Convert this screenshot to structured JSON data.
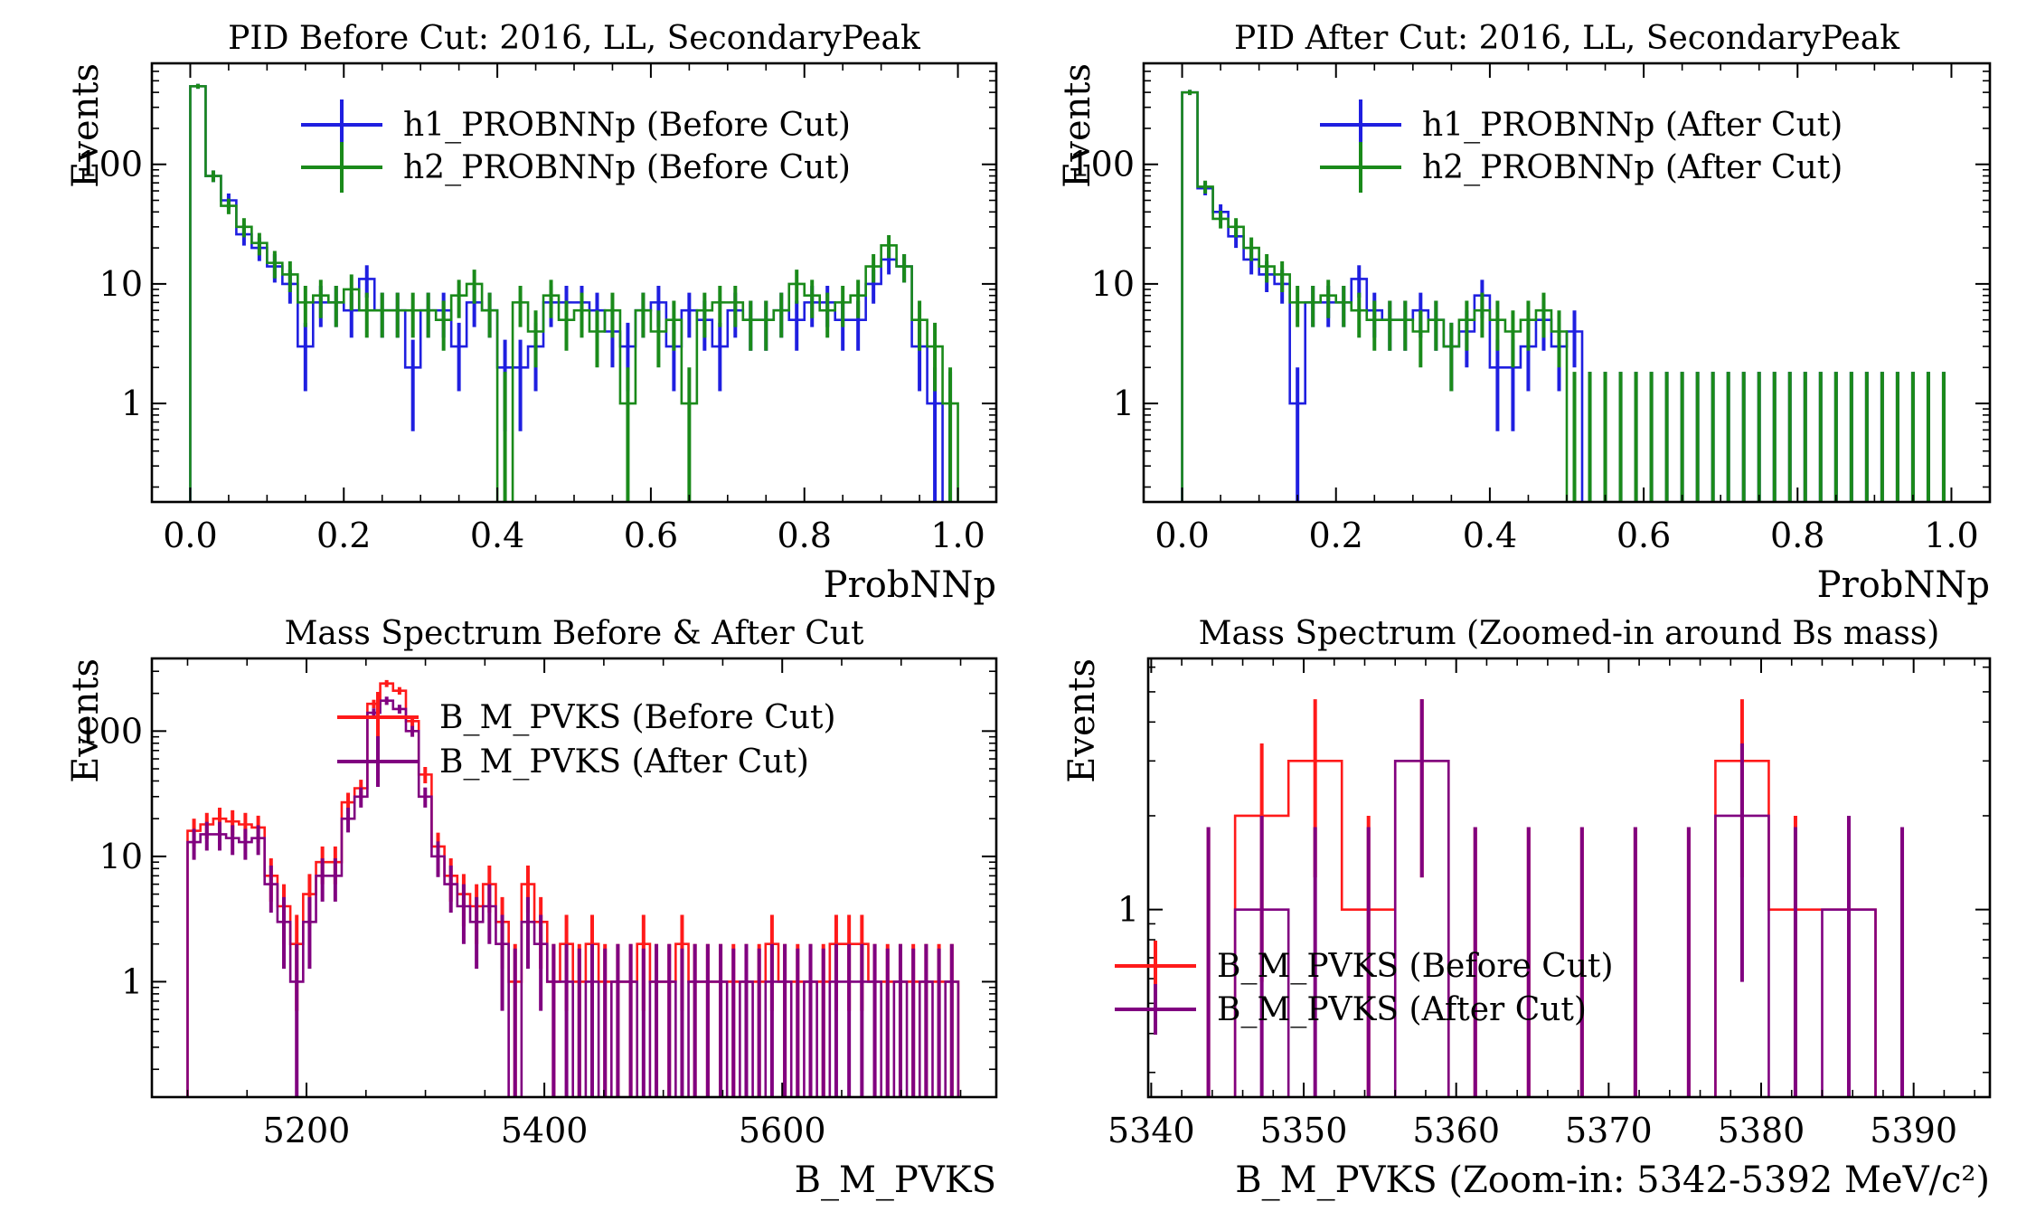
{
  "chart_data": [
    {
      "type": "histogram",
      "title": "PID Before Cut: 2016, LL, SecondaryPeak",
      "xlabel": "ProbNNp",
      "ylabel": "Events",
      "yscale": "log",
      "xlim": [
        -0.05,
        1.05
      ],
      "ylim": [
        0.15,
        700
      ],
      "xticks": [
        0.0,
        0.2,
        0.4,
        0.6,
        0.8,
        1.0
      ],
      "xtick_labels": [
        "0.0",
        "0.2",
        "0.4",
        "0.6",
        "0.8",
        "1.0"
      ],
      "yticks": [
        1,
        10,
        100
      ],
      "ytick_labels": [
        "1",
        "10",
        "100"
      ],
      "bin_edges": {
        "start": 0.0,
        "width": 0.02,
        "count": 50
      },
      "legend_position": "top-right",
      "series": [
        {
          "name": "h1_PROBNNp (Before Cut)",
          "color": "#1f1fe0",
          "values": [
            450,
            80,
            50,
            26,
            20,
            14,
            10,
            3,
            7,
            7,
            6,
            11,
            6,
            6,
            2,
            6,
            6,
            3,
            7,
            6,
            2,
            2,
            3,
            7,
            7,
            7,
            6,
            4,
            3,
            6,
            7,
            3,
            6,
            5,
            3,
            6,
            5,
            5,
            6,
            5,
            7,
            7,
            5,
            5,
            10,
            16,
            14,
            3,
            1,
            0
          ]
        },
        {
          "name": "h2_PROBNNp (Before Cut)",
          "color": "#1a8a1a",
          "values": [
            450,
            80,
            45,
            30,
            22,
            15,
            12,
            7,
            8,
            7,
            9,
            6,
            6,
            6,
            6,
            6,
            5,
            8,
            10,
            6,
            0,
            7,
            4,
            8,
            5,
            6,
            4,
            6,
            1,
            6,
            4,
            5,
            1,
            6,
            7,
            7,
            5,
            5,
            6,
            10,
            8,
            6,
            7,
            8,
            14,
            21,
            14,
            5,
            3,
            1
          ]
        }
      ]
    },
    {
      "type": "histogram",
      "title": "PID After Cut: 2016, LL, SecondaryPeak",
      "xlabel": "ProbNNp",
      "ylabel": "Events",
      "yscale": "log",
      "xlim": [
        -0.05,
        1.05
      ],
      "ylim": [
        0.15,
        700
      ],
      "xticks": [
        0.0,
        0.2,
        0.4,
        0.6,
        0.8,
        1.0
      ],
      "xtick_labels": [
        "0.0",
        "0.2",
        "0.4",
        "0.6",
        "0.8",
        "1.0"
      ],
      "yticks": [
        1,
        10,
        100
      ],
      "ytick_labels": [
        "1",
        "10",
        "100"
      ],
      "bin_edges": {
        "start": 0.0,
        "width": 0.02,
        "count": 50
      },
      "legend_position": "top-right",
      "series": [
        {
          "name": "h1_PROBNNp (After Cut)",
          "color": "#1f1fe0",
          "values": [
            400,
            63,
            40,
            25,
            16,
            12,
            10,
            1,
            7,
            7,
            7,
            11,
            6,
            5,
            5,
            6,
            5,
            3,
            4,
            8,
            2,
            2,
            3,
            5,
            3,
            4,
            0,
            0,
            0,
            0,
            0,
            0,
            0,
            0,
            0,
            0,
            0,
            0,
            0,
            0,
            0,
            0,
            0,
            0,
            0,
            0,
            0,
            0,
            0,
            0
          ]
        },
        {
          "name": "h2_PROBNNp (After Cut)",
          "color": "#1a8a1a",
          "values": [
            400,
            65,
            35,
            30,
            20,
            14,
            12,
            7,
            7,
            8,
            7,
            6,
            5,
            5,
            5,
            4,
            5,
            3,
            5,
            6,
            5,
            4,
            5,
            6,
            4,
            0,
            0,
            0,
            0,
            0,
            0,
            0,
            0,
            0,
            0,
            0,
            0,
            0,
            0,
            0,
            0,
            0,
            0,
            0,
            0,
            0,
            0,
            0,
            0,
            0
          ]
        }
      ]
    },
    {
      "type": "histogram",
      "title": "Mass Spectrum Before & After Cut",
      "xlabel": "B_M_PVKS",
      "ylabel": "Events",
      "yscale": "log",
      "xlim": [
        5070,
        5780
      ],
      "ylim": [
        0.12,
        380
      ],
      "xticks": [
        5200,
        5400,
        5600
      ],
      "xtick_labels": [
        "5200",
        "5400",
        "5600"
      ],
      "yticks": [
        1,
        10,
        100
      ],
      "ytick_labels": [
        "1",
        "10",
        "100"
      ],
      "bin_edges": {
        "start": 5100,
        "width": 10.8,
        "count": 60
      },
      "legend_position": "top-right",
      "series": [
        {
          "name": "B_M_PVKS (Before Cut)",
          "color": "#ff1a1a",
          "values": [
            16,
            18,
            20,
            19,
            18,
            17,
            7,
            4,
            2,
            5,
            9,
            9,
            27,
            35,
            165,
            240,
            210,
            120,
            45,
            12,
            7,
            5,
            4,
            6,
            3,
            1,
            6,
            3,
            1,
            2,
            1,
            2,
            1,
            1,
            1,
            2,
            1,
            1,
            2,
            1,
            1,
            1,
            1,
            1,
            1,
            2,
            1,
            1,
            1,
            1,
            2,
            2,
            2,
            1,
            1,
            1,
            1,
            1,
            1,
            1
          ]
        },
        {
          "name": "B_M_PVKS (After Cut)",
          "color": "#800080",
          "values": [
            13,
            15,
            15,
            14,
            13,
            14,
            6,
            3,
            1,
            3,
            7,
            7,
            20,
            30,
            140,
            175,
            150,
            100,
            30,
            10,
            6,
            4,
            3,
            4,
            2,
            0,
            3,
            2,
            1,
            1,
            0,
            1,
            0,
            1,
            1,
            0,
            1,
            1,
            0,
            1,
            1,
            1,
            0,
            1,
            0,
            1,
            1,
            0,
            1,
            0,
            1,
            1,
            1,
            1,
            0,
            1,
            0,
            1,
            0,
            1
          ]
        }
      ]
    },
    {
      "type": "histogram",
      "title": "Mass Spectrum (Zoomed-in around Bs mass)",
      "xlabel": "B_M_PVKS (Zoom-in: 5342-5392 MeV/c²)",
      "ylabel": "Events",
      "yscale": "log",
      "xlim": [
        5339.8,
        5395
      ],
      "ylim": [
        0.25,
        6.4
      ],
      "xticks": [
        5340,
        5350,
        5360,
        5370,
        5380,
        5390
      ],
      "xtick_labels": [
        "5340",
        "5350",
        "5360",
        "5370",
        "5380",
        "5390"
      ],
      "yticks": [
        1
      ],
      "ytick_labels": [
        "1"
      ],
      "bin_edges": {
        "start": 5342,
        "width": 3.5,
        "count": 14
      },
      "legend_position": "bottom-left",
      "series": [
        {
          "name": "B_M_PVKS (Before Cut)",
          "color": "#ff1a1a",
          "values": [
            0,
            2,
            3,
            1,
            3,
            0,
            0,
            0,
            0,
            0,
            3,
            1,
            1,
            0
          ]
        },
        {
          "name": "B_M_PVKS (After Cut)",
          "color": "#800080",
          "values": [
            0,
            1,
            0,
            0,
            3,
            0,
            0,
            0,
            0,
            0,
            2,
            0,
            1,
            0
          ]
        }
      ]
    }
  ]
}
